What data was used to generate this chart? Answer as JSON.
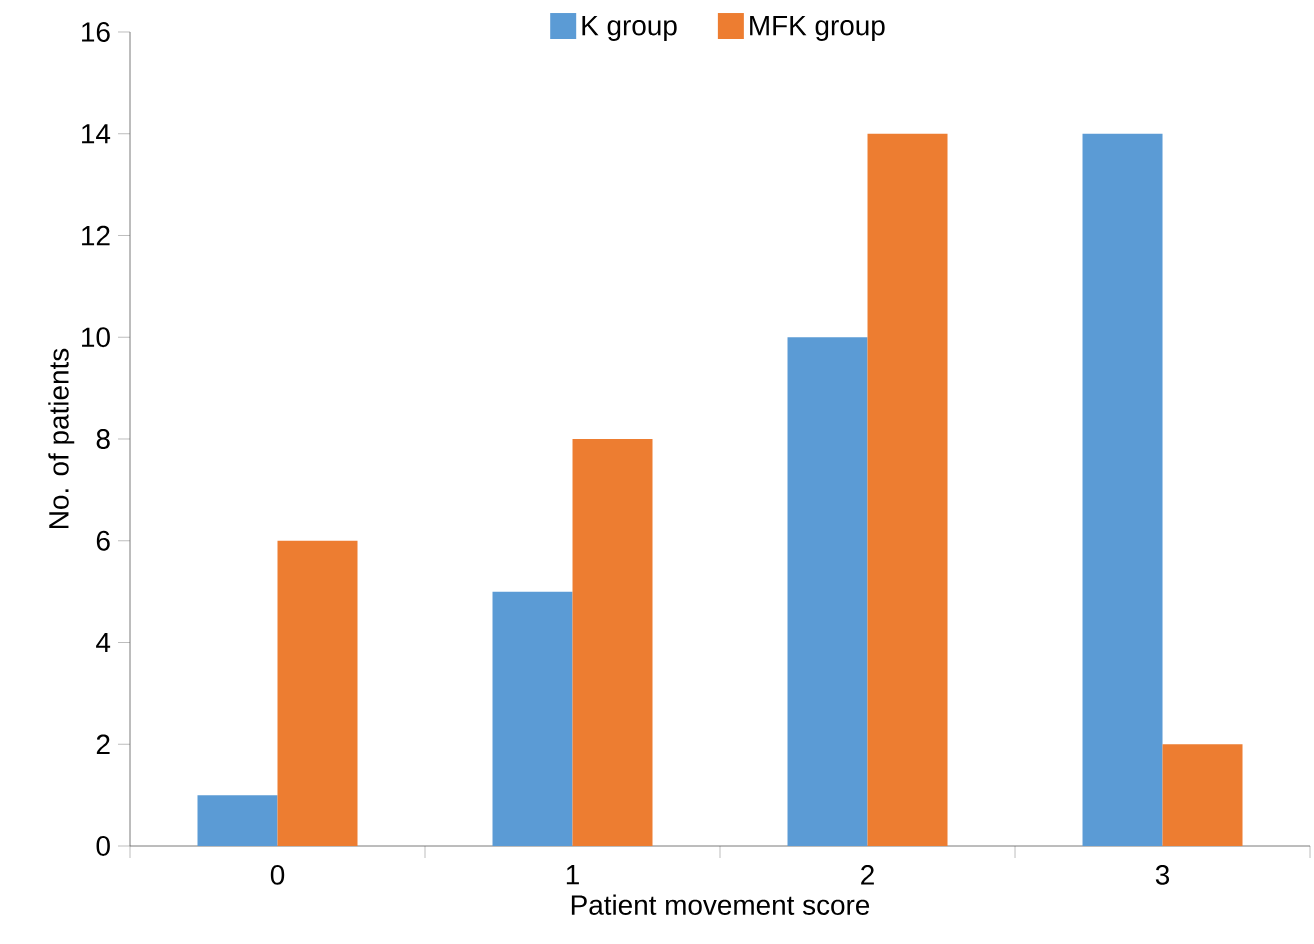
{
  "chart_data": {
    "type": "bar",
    "xlabel": "Patient movement score",
    "ylabel": "No. of patients",
    "categories": [
      "0",
      "1",
      "2",
      "3"
    ],
    "series": [
      {
        "name": "K group",
        "color": "#5b9bd5",
        "values": [
          1,
          5,
          10,
          14
        ]
      },
      {
        "name": "MFK group",
        "color": "#ed7d31",
        "values": [
          6,
          8,
          14,
          2
        ]
      }
    ],
    "ylim": [
      0,
      16
    ],
    "yticks": [
      0,
      2,
      4,
      6,
      8,
      10,
      12,
      14,
      16
    ],
    "grid": false,
    "legend": "top"
  }
}
